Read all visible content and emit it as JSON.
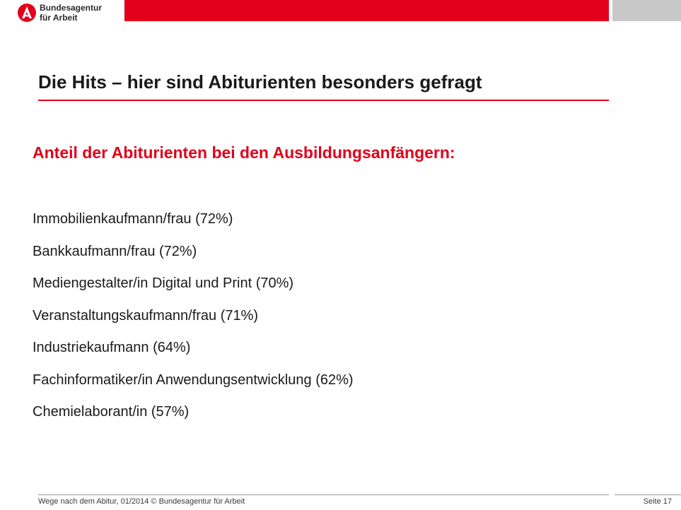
{
  "header": {
    "logo_line1": "Bundesagentur",
    "logo_line2": "für Arbeit",
    "accent_color": "#e2001a"
  },
  "slide": {
    "title": "Die Hits – hier sind Abiturienten besonders gefragt",
    "subtitle": "Anteil der Abiturienten bei den Ausbildungsanfängern:",
    "items": [
      "Immobilienkaufmann/frau (72%)",
      "Bankkaufmann/frau (72%)",
      "Mediengestalter/in Digital und Print (70%)",
      "Veranstaltungskaufmann/frau (71%)",
      "Industriekaufmann (64%)",
      "Fachinformatiker/in Anwendungsentwicklung (62%)",
      "Chemielaborant/in (57%)"
    ]
  },
  "footer": {
    "left": "Wege nach dem Abitur, 01/2014 © Bundesagentur für Arbeit",
    "page": "Seite 17"
  }
}
